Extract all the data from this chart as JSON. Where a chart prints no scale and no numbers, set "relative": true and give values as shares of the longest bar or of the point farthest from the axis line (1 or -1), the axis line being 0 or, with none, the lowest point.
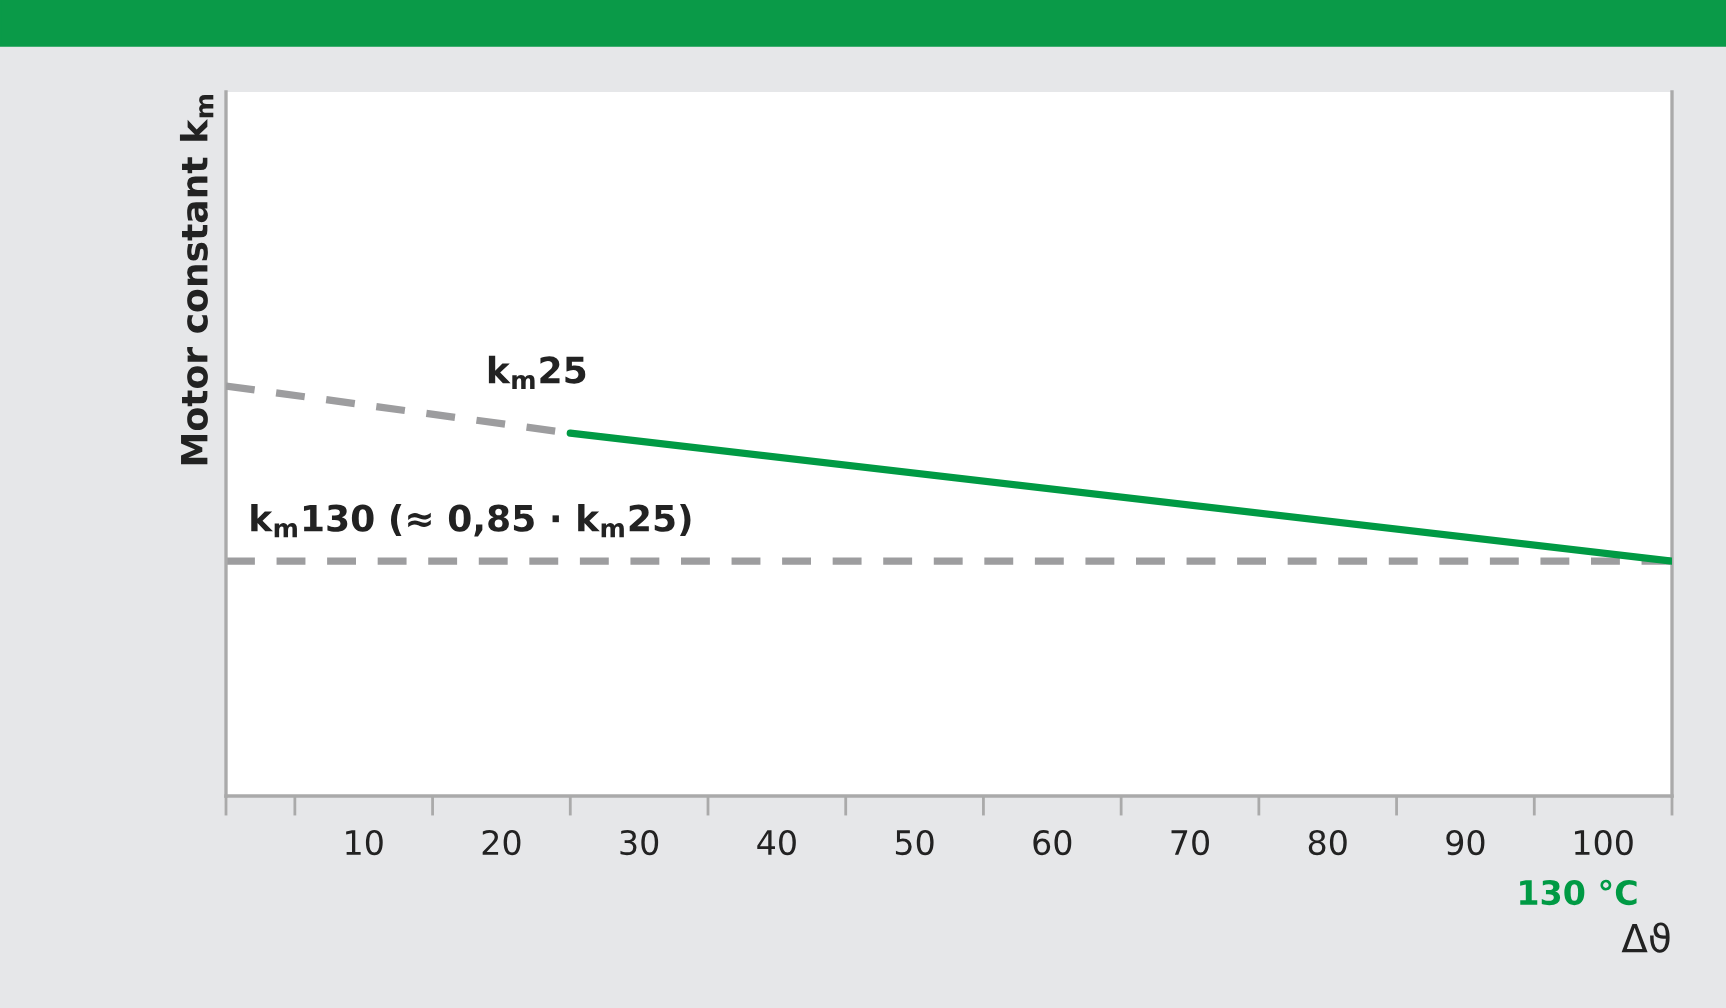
{
  "chart_data": {
    "type": "line",
    "relative": true,
    "ylabel": "Motor constant k$_{m}$",
    "xlabel": "Δϑ",
    "xlim": [
      0,
      105
    ],
    "xticks": [
      {
        "value": 0,
        "label": null
      },
      {
        "value": 5,
        "label": null
      },
      10,
      {
        "value": 15,
        "label": null
      },
      20,
      {
        "value": 25,
        "label": null
      },
      30,
      {
        "value": 35,
        "label": null
      },
      40,
      {
        "value": 45,
        "label": null
      },
      50,
      {
        "value": 55,
        "label": null
      },
      60,
      {
        "value": 65,
        "label": null
      },
      70,
      {
        "value": 75,
        "label": null
      },
      80,
      {
        "value": 85,
        "label": null
      },
      90,
      {
        "value": 95,
        "label": null
      },
      100,
      {
        "value": 105,
        "label": null
      }
    ],
    "series": [
      {
        "x": [
          0,
          25
        ],
        "values": [
          1,
          0.885
        ],
        "color": "#9d9d9f",
        "line_style": "dashed"
      },
      {
        "x": [
          25,
          105
        ],
        "values": [
          0.885,
          0.573
        ],
        "color": "#009a44",
        "line_style": "solid"
      }
    ],
    "ref_lines": [
      {
        "axis": "y",
        "value": 0.573,
        "label": "k$_{m}$130 (≈ 0,85 · k$_{m}$25)",
        "color": "#9d9d9f",
        "line_style": "dashed"
      }
    ],
    "annotations": [
      {
        "text": "k$_{m}$25",
        "x": 25,
        "y": 0.885
      },
      "130 °C"
    ],
    "grid": false,
    "legend": false,
    "marker": "none"
  }
}
